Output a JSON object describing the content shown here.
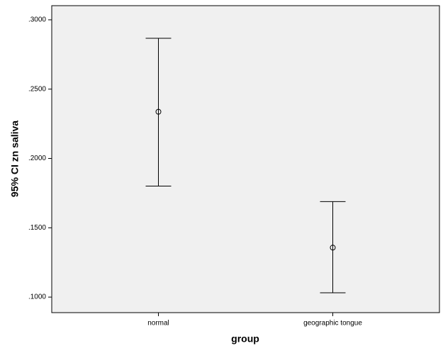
{
  "chart_data": {
    "type": "errorbar",
    "x_label": "group",
    "y_label": "95% CI zn saliva",
    "categories": [
      "normal",
      "geographic tongue"
    ],
    "values": [
      0.2337,
      0.1357
    ],
    "lower": [
      0.1801,
      0.1031
    ],
    "upper": [
      0.2867,
      0.1689
    ],
    "color": "#000000",
    "background": "#f0f0f0",
    "ylim": [
      0.0888,
      0.3102
    ],
    "yticks": [
      {
        "value": 0.1,
        "label": ".1000"
      },
      {
        "value": 0.15,
        "label": ".1500"
      },
      {
        "value": 0.2,
        "label": ".2000"
      },
      {
        "value": 0.25,
        "label": ".2500"
      },
      {
        "value": 0.3,
        "label": ".3000"
      }
    ],
    "grid": false
  }
}
